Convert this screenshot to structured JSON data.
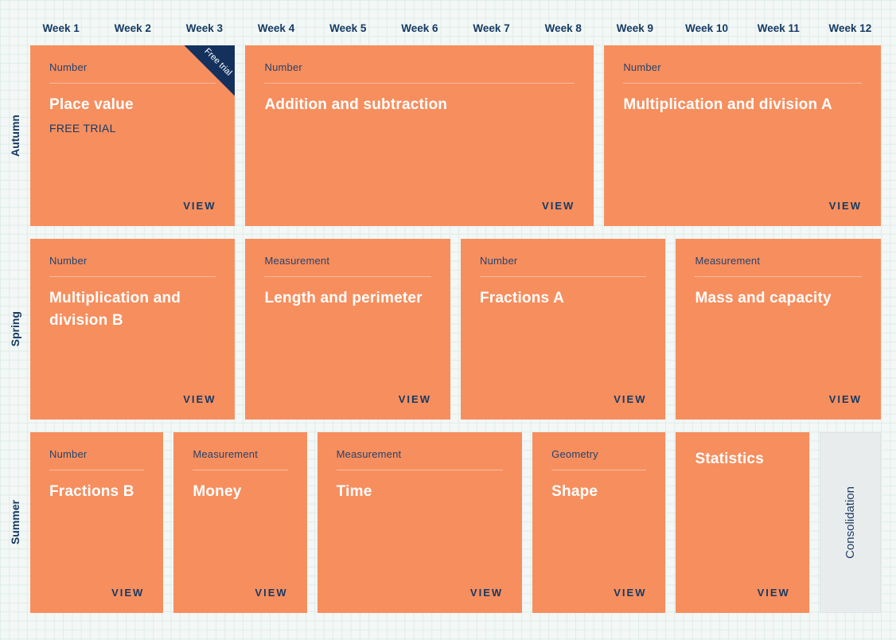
{
  "weeks": [
    "Week 1",
    "Week 2",
    "Week 3",
    "Week 4",
    "Week 5",
    "Week 6",
    "Week 7",
    "Week 8",
    "Week 9",
    "Week 10",
    "Week 11",
    "Week 12"
  ],
  "rows": [
    {
      "term": "Autumn",
      "cards": [
        {
          "category": "Number",
          "title": "Place value",
          "subtitle": "FREE TRIAL",
          "ribbon": "Free trial",
          "weeks_span": 3,
          "view_label": "VIEW"
        },
        {
          "category": "Number",
          "title": "Addition and subtraction",
          "weeks_span": 5,
          "view_label": "VIEW"
        },
        {
          "category": "Number",
          "title": "Multiplication and division A",
          "weeks_span": 4,
          "view_label": "VIEW"
        }
      ]
    },
    {
      "term": "Spring",
      "cards": [
        {
          "category": "Number",
          "title": "Multiplication and division B",
          "weeks_span": 3,
          "view_label": "VIEW"
        },
        {
          "category": "Measurement",
          "title": "Length and perimeter",
          "weeks_span": 3,
          "view_label": "VIEW"
        },
        {
          "category": "Number",
          "title": "Fractions A",
          "weeks_span": 3,
          "view_label": "VIEW"
        },
        {
          "category": "Measurement",
          "title": "Mass and capacity",
          "weeks_span": 3,
          "view_label": "VIEW"
        }
      ]
    },
    {
      "term": "Summer",
      "cards": [
        {
          "category": "Number",
          "title": "Fractions B",
          "weeks_span": 2,
          "view_label": "VIEW"
        },
        {
          "category": "Measurement",
          "title": "Money",
          "weeks_span": 2,
          "view_label": "VIEW"
        },
        {
          "category": "Measurement",
          "title": "Time",
          "weeks_span": 3,
          "view_label": "VIEW"
        },
        {
          "category": "Geometry",
          "title": "Shape",
          "weeks_span": 2,
          "view_label": "VIEW"
        },
        {
          "title": "Statistics",
          "weeks_span": 2,
          "view_label": "VIEW"
        },
        {
          "title": "Consolidation",
          "weeks_span": 1,
          "type": "consolidation"
        }
      ]
    }
  ],
  "colors": {
    "card_orange": "#F78E5E",
    "navy": "#163A63",
    "ribbon_navy": "#14315E",
    "consolidation_bg": "#E9ECED",
    "background": "#F3F7F5",
    "grid_line": "#DEEDE8"
  }
}
